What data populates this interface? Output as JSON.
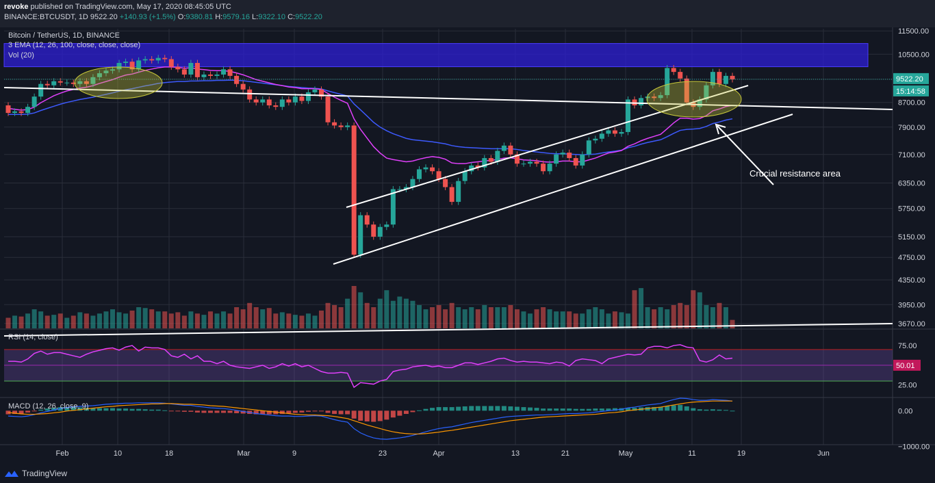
{
  "header": {
    "publisher": "revoke",
    "published_text": "published on TradingView.com, May 17, 2020 08:45:05 UTC",
    "symbol": "BINANCE:BTCUSDT, 1D",
    "last": "9522.20",
    "change": "+140.93 (+1.5%)",
    "o_label": "O:",
    "o": "9380.81",
    "h_label": "H:",
    "h": "9579.16",
    "l_label": "L:",
    "l": "9322.10",
    "c_label": "C:",
    "c": "9522.20"
  },
  "legends": {
    "main": "Bitcoin / TetherUS, 1D, BINANCE",
    "ema": "3 EMA (12, 26, 100, close, close, close)",
    "vol": "Vol (20)",
    "rsi": "RSI (14, close)",
    "macd": "MACD (12, 26, close, 9)"
  },
  "annotation": "Crucial resistance area",
  "price_badge": "9522.20",
  "countdown_badge": "15:14:58",
  "rsi_badge": "50.01",
  "footer": {
    "brand": "TradingView"
  },
  "colors": {
    "background": "#131722",
    "bull": "#26a69a",
    "bear": "#ef5350",
    "ema_fast": "#e040fb",
    "ema_slow": "#3d5afe",
    "resistance_zone": "#2e1fd6",
    "highlight_ellipse": "#c9c93a",
    "rsi_line": "#e040fb",
    "macd_line": "#2962ff",
    "signal_line": "#ff9800"
  },
  "chart_data": {
    "type": "candlestick",
    "price_axis_ticks": [
      "11500.00",
      "10500.00",
      "9522.20",
      "8700.00",
      "7900.00",
      "7100.00",
      "6350.00",
      "5750.00",
      "5150.00",
      "4750.00",
      "4350.00",
      "3950.00",
      "3670.00"
    ],
    "x_ticks": [
      "Feb",
      "10",
      "18",
      "Mar",
      "9",
      "23",
      "Apr",
      "13",
      "21",
      "May",
      "11",
      "19",
      "Jun"
    ],
    "rsi_ticks": [
      "75.00",
      "25.00"
    ],
    "macd_ticks": [
      "0.00",
      "−1000.00"
    ],
    "price_range": [
      3600,
      11600
    ],
    "resistance_zone": [
      10000,
      10950
    ],
    "candles": [
      {
        "o": 8600,
        "c": 8350
      },
      {
        "o": 8350,
        "c": 8400
      },
      {
        "o": 8400,
        "c": 8350
      },
      {
        "o": 8350,
        "c": 8550
      },
      {
        "o": 8550,
        "c": 8900
      },
      {
        "o": 8900,
        "c": 9350
      },
      {
        "o": 9350,
        "c": 9300
      },
      {
        "o": 9300,
        "c": 9450
      },
      {
        "o": 9450,
        "c": 9400
      },
      {
        "o": 9400,
        "c": 9400
      },
      {
        "o": 9400,
        "c": 9350
      },
      {
        "o": 9350,
        "c": 9450
      },
      {
        "o": 9450,
        "c": 9350
      },
      {
        "o": 9350,
        "c": 9600
      },
      {
        "o": 9600,
        "c": 9750
      },
      {
        "o": 9750,
        "c": 9850
      },
      {
        "o": 9850,
        "c": 9900
      },
      {
        "o": 9900,
        "c": 10150
      },
      {
        "o": 10150,
        "c": 10200
      },
      {
        "o": 10200,
        "c": 9900
      },
      {
        "o": 9900,
        "c": 10250
      },
      {
        "o": 10250,
        "c": 10300
      },
      {
        "o": 10300,
        "c": 10250
      },
      {
        "o": 10250,
        "c": 10350
      },
      {
        "o": 10350,
        "c": 10300
      },
      {
        "o": 10300,
        "c": 10000
      },
      {
        "o": 10000,
        "c": 9900
      },
      {
        "o": 9900,
        "c": 9700
      },
      {
        "o": 9700,
        "c": 10150
      },
      {
        "o": 10150,
        "c": 9600
      },
      {
        "o": 9600,
        "c": 9700
      },
      {
        "o": 9700,
        "c": 9650
      },
      {
        "o": 9650,
        "c": 9700
      },
      {
        "o": 9700,
        "c": 9900
      },
      {
        "o": 9900,
        "c": 9650
      },
      {
        "o": 9650,
        "c": 9350
      },
      {
        "o": 9350,
        "c": 9150
      },
      {
        "o": 9150,
        "c": 8800
      },
      {
        "o": 8800,
        "c": 8700
      },
      {
        "o": 8700,
        "c": 8800
      },
      {
        "o": 8800,
        "c": 8600
      },
      {
        "o": 8600,
        "c": 8550
      },
      {
        "o": 8550,
        "c": 8800
      },
      {
        "o": 8800,
        "c": 8700
      },
      {
        "o": 8700,
        "c": 8900
      },
      {
        "o": 8900,
        "c": 8750
      },
      {
        "o": 8750,
        "c": 9050
      },
      {
        "o": 9050,
        "c": 9150
      },
      {
        "o": 9150,
        "c": 8900
      },
      {
        "o": 8900,
        "c": 8050
      },
      {
        "o": 8050,
        "c": 7950
      },
      {
        "o": 7950,
        "c": 7900
      },
      {
        "o": 7900,
        "c": 7950
      },
      {
        "o": 7950,
        "c": 4800
      },
      {
        "o": 4800,
        "c": 5600
      },
      {
        "o": 5600,
        "c": 5400
      },
      {
        "o": 5400,
        "c": 5150
      },
      {
        "o": 5150,
        "c": 5350
      },
      {
        "o": 5350,
        "c": 5400
      },
      {
        "o": 5400,
        "c": 6200
      },
      {
        "o": 6200,
        "c": 6200
      },
      {
        "o": 6200,
        "c": 6250
      },
      {
        "o": 6250,
        "c": 6450
      },
      {
        "o": 6450,
        "c": 6700
      },
      {
        "o": 6700,
        "c": 6750
      },
      {
        "o": 6750,
        "c": 6650
      },
      {
        "o": 6650,
        "c": 6450
      },
      {
        "o": 6450,
        "c": 6250
      },
      {
        "o": 6250,
        "c": 5900
      },
      {
        "o": 5900,
        "c": 6400
      },
      {
        "o": 6400,
        "c": 6650
      },
      {
        "o": 6650,
        "c": 6800
      },
      {
        "o": 6800,
        "c": 6750
      },
      {
        "o": 6750,
        "c": 7000
      },
      {
        "o": 7000,
        "c": 6900
      },
      {
        "o": 6900,
        "c": 7200
      },
      {
        "o": 7200,
        "c": 7350
      },
      {
        "o": 7350,
        "c": 7100
      },
      {
        "o": 7100,
        "c": 6850
      },
      {
        "o": 6850,
        "c": 6850
      },
      {
        "o": 6850,
        "c": 6900
      },
      {
        "o": 6900,
        "c": 6850
      },
      {
        "o": 6850,
        "c": 6650
      },
      {
        "o": 6650,
        "c": 6850
      },
      {
        "o": 6850,
        "c": 7100
      },
      {
        "o": 7100,
        "c": 7150
      },
      {
        "o": 7150,
        "c": 7000
      },
      {
        "o": 7000,
        "c": 6800
      },
      {
        "o": 6800,
        "c": 7100
      },
      {
        "o": 7100,
        "c": 7500
      },
      {
        "o": 7500,
        "c": 7550
      },
      {
        "o": 7550,
        "c": 7700
      },
      {
        "o": 7700,
        "c": 7800
      },
      {
        "o": 7800,
        "c": 7700
      },
      {
        "o": 7700,
        "c": 7750
      },
      {
        "o": 7750,
        "c": 8800
      },
      {
        "o": 8800,
        "c": 8600
      },
      {
        "o": 8600,
        "c": 8850
      },
      {
        "o": 8850,
        "c": 8900
      },
      {
        "o": 8900,
        "c": 8850
      },
      {
        "o": 8850,
        "c": 8950
      },
      {
        "o": 8950,
        "c": 9950
      },
      {
        "o": 9950,
        "c": 9800
      },
      {
        "o": 9800,
        "c": 9550
      },
      {
        "o": 9550,
        "c": 8700
      },
      {
        "o": 8700,
        "c": 8550
      },
      {
        "o": 8550,
        "c": 8800
      },
      {
        "o": 8800,
        "c": 9300
      },
      {
        "o": 9300,
        "c": 9800
      },
      {
        "o": 9800,
        "c": 9350
      },
      {
        "o": 9350,
        "c": 9650
      },
      {
        "o": 9650,
        "c": 9520
      }
    ],
    "volume_relative": [
      0.25,
      0.3,
      0.28,
      0.35,
      0.45,
      0.4,
      0.3,
      0.32,
      0.35,
      0.25,
      0.3,
      0.38,
      0.35,
      0.3,
      0.35,
      0.4,
      0.45,
      0.38,
      0.35,
      0.42,
      0.5,
      0.48,
      0.45,
      0.4,
      0.4,
      0.35,
      0.38,
      0.3,
      0.4,
      0.35,
      0.32,
      0.4,
      0.35,
      0.4,
      0.35,
      0.5,
      0.45,
      0.6,
      0.5,
      0.45,
      0.48,
      0.35,
      0.38,
      0.35,
      0.32,
      0.3,
      0.35,
      0.3,
      0.42,
      0.6,
      0.55,
      0.5,
      0.7,
      1.0,
      0.85,
      0.6,
      0.5,
      0.7,
      0.9,
      0.65,
      0.75,
      0.7,
      0.65,
      0.55,
      0.45,
      0.5,
      0.55,
      0.45,
      0.6,
      0.5,
      0.45,
      0.5,
      0.45,
      0.55,
      0.5,
      0.5,
      0.5,
      0.55,
      0.45,
      0.4,
      0.35,
      0.45,
      0.5,
      0.45,
      0.4,
      0.4,
      0.4,
      0.35,
      0.35,
      0.45,
      0.5,
      0.45,
      0.35,
      0.4,
      0.38,
      0.35,
      0.9,
      0.95,
      0.5,
      0.45,
      0.5,
      0.45,
      0.55,
      0.6,
      0.55,
      0.9,
      0.85,
      0.55,
      0.5,
      0.6,
      0.5,
      0.2
    ],
    "rsi": [
      55,
      55,
      54,
      58,
      65,
      68,
      64,
      66,
      66,
      64,
      62,
      60,
      64,
      67,
      69,
      71,
      72,
      69,
      73,
      75,
      68,
      73,
      72,
      72,
      70,
      62,
      60,
      64,
      58,
      62,
      55,
      55,
      52,
      55,
      50,
      48,
      47,
      46,
      48,
      50,
      46,
      48,
      52,
      49,
      52,
      48,
      50,
      46,
      42,
      40,
      40,
      41,
      40,
      22,
      28,
      27,
      26,
      30,
      32,
      42,
      44,
      45,
      48,
      49,
      50,
      48,
      49,
      47,
      47,
      50,
      53,
      53,
      51,
      53,
      55,
      58,
      59,
      56,
      54,
      55,
      54,
      54,
      53,
      52,
      54,
      53,
      49,
      56,
      58,
      57,
      56,
      52,
      58,
      60,
      62,
      64,
      63,
      64,
      72,
      74,
      74,
      72,
      75,
      76,
      73,
      72,
      56,
      54,
      57,
      63,
      58,
      59
    ],
    "ema_fast_line": [
      8500,
      8470,
      8440,
      8460,
      8540,
      8690,
      8810,
      8930,
      9020,
      9100,
      9150,
      9200,
      9230,
      9290,
      9370,
      9440,
      9510,
      9600,
      9680,
      9720,
      9790,
      9860,
      9910,
      9960,
      9990,
      9990,
      9980,
      9940,
      9960,
      9910,
      9890,
      9860,
      9850,
      9850,
      9820,
      9760,
      9690,
      9600,
      9510,
      9450,
      9390,
      9330,
      9290,
      9240,
      9220,
      9180,
      9180,
      9180,
      9150,
      9010,
      8880,
      8770,
      8670,
      8160,
      7830,
      7570,
      7320,
      7140,
      7000,
      6960,
      6930,
      6900,
      6920,
      6970,
      7010,
      7040,
      7020,
      6970,
      6870,
      6850,
      6850,
      6880,
      6900,
      6920,
      6940,
      6960,
      7000,
      7010,
      6980,
      6950,
      6940,
      6930,
      6900,
      6890,
      6900,
      6920,
      6920,
      6900,
      6900,
      6950,
      7000,
      7070,
      7140,
      7170,
      7210,
      7330,
      7400,
      7490,
      7560,
      7620,
      7680,
      7850,
      8030,
      8180,
      8180,
      8150,
      8170,
      8260,
      8420,
      8480,
      8560,
      8600
    ],
    "ema_slow_line": [
      8300,
      8300,
      8300,
      8310,
      8350,
      8430,
      8500,
      8570,
      8640,
      8700,
      8750,
      8800,
      8840,
      8880,
      8930,
      8980,
      9030,
      9090,
      9140,
      9180,
      9230,
      9280,
      9320,
      9370,
      9400,
      9420,
      9440,
      9440,
      9460,
      9460,
      9470,
      9470,
      9480,
      9480,
      9490,
      9480,
      9470,
      9440,
      9410,
      9380,
      9350,
      9320,
      9290,
      9260,
      9240,
      9220,
      9200,
      9190,
      9170,
      9100,
      9040,
      8980,
      8920,
      8650,
      8450,
      8250,
      8050,
      7900,
      7790,
      7700,
      7630,
      7560,
      7520,
      7500,
      7480,
      7460,
      7430,
      7400,
      7350,
      7320,
      7300,
      7290,
      7280,
      7270,
      7260,
      7260,
      7260,
      7260,
      7240,
      7210,
      7190,
      7170,
      7150,
      7130,
      7120,
      7120,
      7110,
      7100,
      7090,
      7100,
      7110,
      7140,
      7170,
      7190,
      7220,
      7290,
      7330,
      7390,
      7440,
      7480,
      7520,
      7610,
      7710,
      7800,
      7830,
      7840,
      7860,
      7920,
      8010,
      8060,
      8120,
      8160
    ],
    "macd": [
      -150,
      -160,
      -170,
      -150,
      -110,
      -60,
      -20,
      20,
      60,
      90,
      110,
      120,
      130,
      140,
      160,
      180,
      190,
      200,
      210,
      210,
      220,
      220,
      220,
      220,
      210,
      190,
      170,
      150,
      150,
      120,
      100,
      80,
      70,
      60,
      40,
      10,
      -20,
      -50,
      -80,
      -100,
      -120,
      -140,
      -150,
      -150,
      -160,
      -160,
      -150,
      -140,
      -150,
      -200,
      -250,
      -290,
      -320,
      -500,
      -620,
      -700,
      -760,
      -790,
      -800,
      -780,
      -760,
      -730,
      -690,
      -640,
      -590,
      -540,
      -500,
      -470,
      -450,
      -410,
      -370,
      -330,
      -300,
      -270,
      -240,
      -210,
      -180,
      -160,
      -150,
      -140,
      -130,
      -120,
      -120,
      -110,
      -100,
      -90,
      -80,
      -80,
      -70,
      -60,
      -40,
      -20,
      0,
      20,
      40,
      80,
      100,
      130,
      160,
      180,
      200,
      260,
      310,
      350,
      340,
      310,
      290,
      290,
      310,
      300,
      290,
      270
    ],
    "signal": [
      -50,
      -70,
      -90,
      -100,
      -100,
      -90,
      -80,
      -60,
      -40,
      -10,
      10,
      30,
      50,
      70,
      90,
      110,
      120,
      140,
      150,
      160,
      170,
      180,
      190,
      190,
      200,
      200,
      190,
      180,
      180,
      170,
      160,
      140,
      130,
      120,
      100,
      80,
      60,
      40,
      20,
      0,
      -20,
      -40,
      -60,
      -80,
      -100,
      -110,
      -120,
      -120,
      -130,
      -140,
      -160,
      -190,
      -220,
      -280,
      -340,
      -400,
      -450,
      -500,
      -550,
      -590,
      -620,
      -640,
      -650,
      -650,
      -640,
      -620,
      -600,
      -570,
      -550,
      -520,
      -490,
      -460,
      -430,
      -400,
      -370,
      -340,
      -310,
      -280,
      -260,
      -240,
      -220,
      -200,
      -180,
      -170,
      -160,
      -150,
      -140,
      -130,
      -120,
      -110,
      -100,
      -80,
      -60,
      -50,
      -30,
      0,
      20,
      40,
      60,
      80,
      100,
      130,
      160,
      190,
      220,
      240,
      250,
      260,
      270,
      270,
      270,
      270
    ]
  }
}
